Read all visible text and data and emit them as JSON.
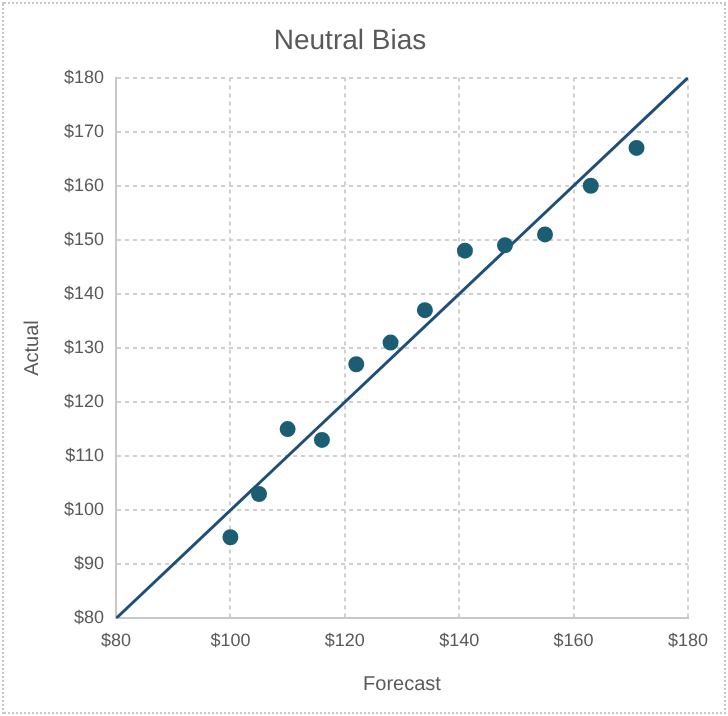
{
  "chart_data": {
    "type": "scatter",
    "title": "Neutral Bias",
    "xlabel": "Forecast",
    "ylabel": "Actual",
    "x": [
      100,
      105,
      110,
      116,
      122,
      128,
      134,
      141,
      148,
      155,
      163,
      171
    ],
    "series": [
      {
        "type": "scatter",
        "color": "#1b5e74",
        "values": [
          95,
          103,
          115,
          113,
          127,
          131,
          137,
          148,
          149,
          151,
          160,
          167
        ]
      },
      {
        "type": "line",
        "color": "#1f4e79",
        "x": [
          80,
          180
        ],
        "values": [
          80,
          180
        ],
        "marker": "none"
      }
    ],
    "xlim": [
      80,
      180
    ],
    "xticks": [
      {
        "value": 80,
        "label": "$80"
      },
      {
        "value": 100,
        "label": "$100"
      },
      {
        "value": 120,
        "label": "$120"
      },
      {
        "value": 140,
        "label": "$140"
      },
      {
        "value": 160,
        "label": "$160"
      },
      {
        "value": 180,
        "label": "$180"
      }
    ],
    "ylim": [
      80,
      180
    ],
    "yticks": [
      {
        "value": 80,
        "label": "$80"
      },
      {
        "value": 90,
        "label": "$90"
      },
      {
        "value": 100,
        "label": "$100"
      },
      {
        "value": 110,
        "label": "$110"
      },
      {
        "value": 120,
        "label": "$120"
      },
      {
        "value": 130,
        "label": "$130"
      },
      {
        "value": 140,
        "label": "$140"
      },
      {
        "value": 150,
        "label": "$150"
      },
      {
        "value": 160,
        "label": "$160"
      },
      {
        "value": 170,
        "label": "$170"
      },
      {
        "value": 180,
        "label": "$180"
      }
    ],
    "grid": true,
    "marker": "circle"
  }
}
